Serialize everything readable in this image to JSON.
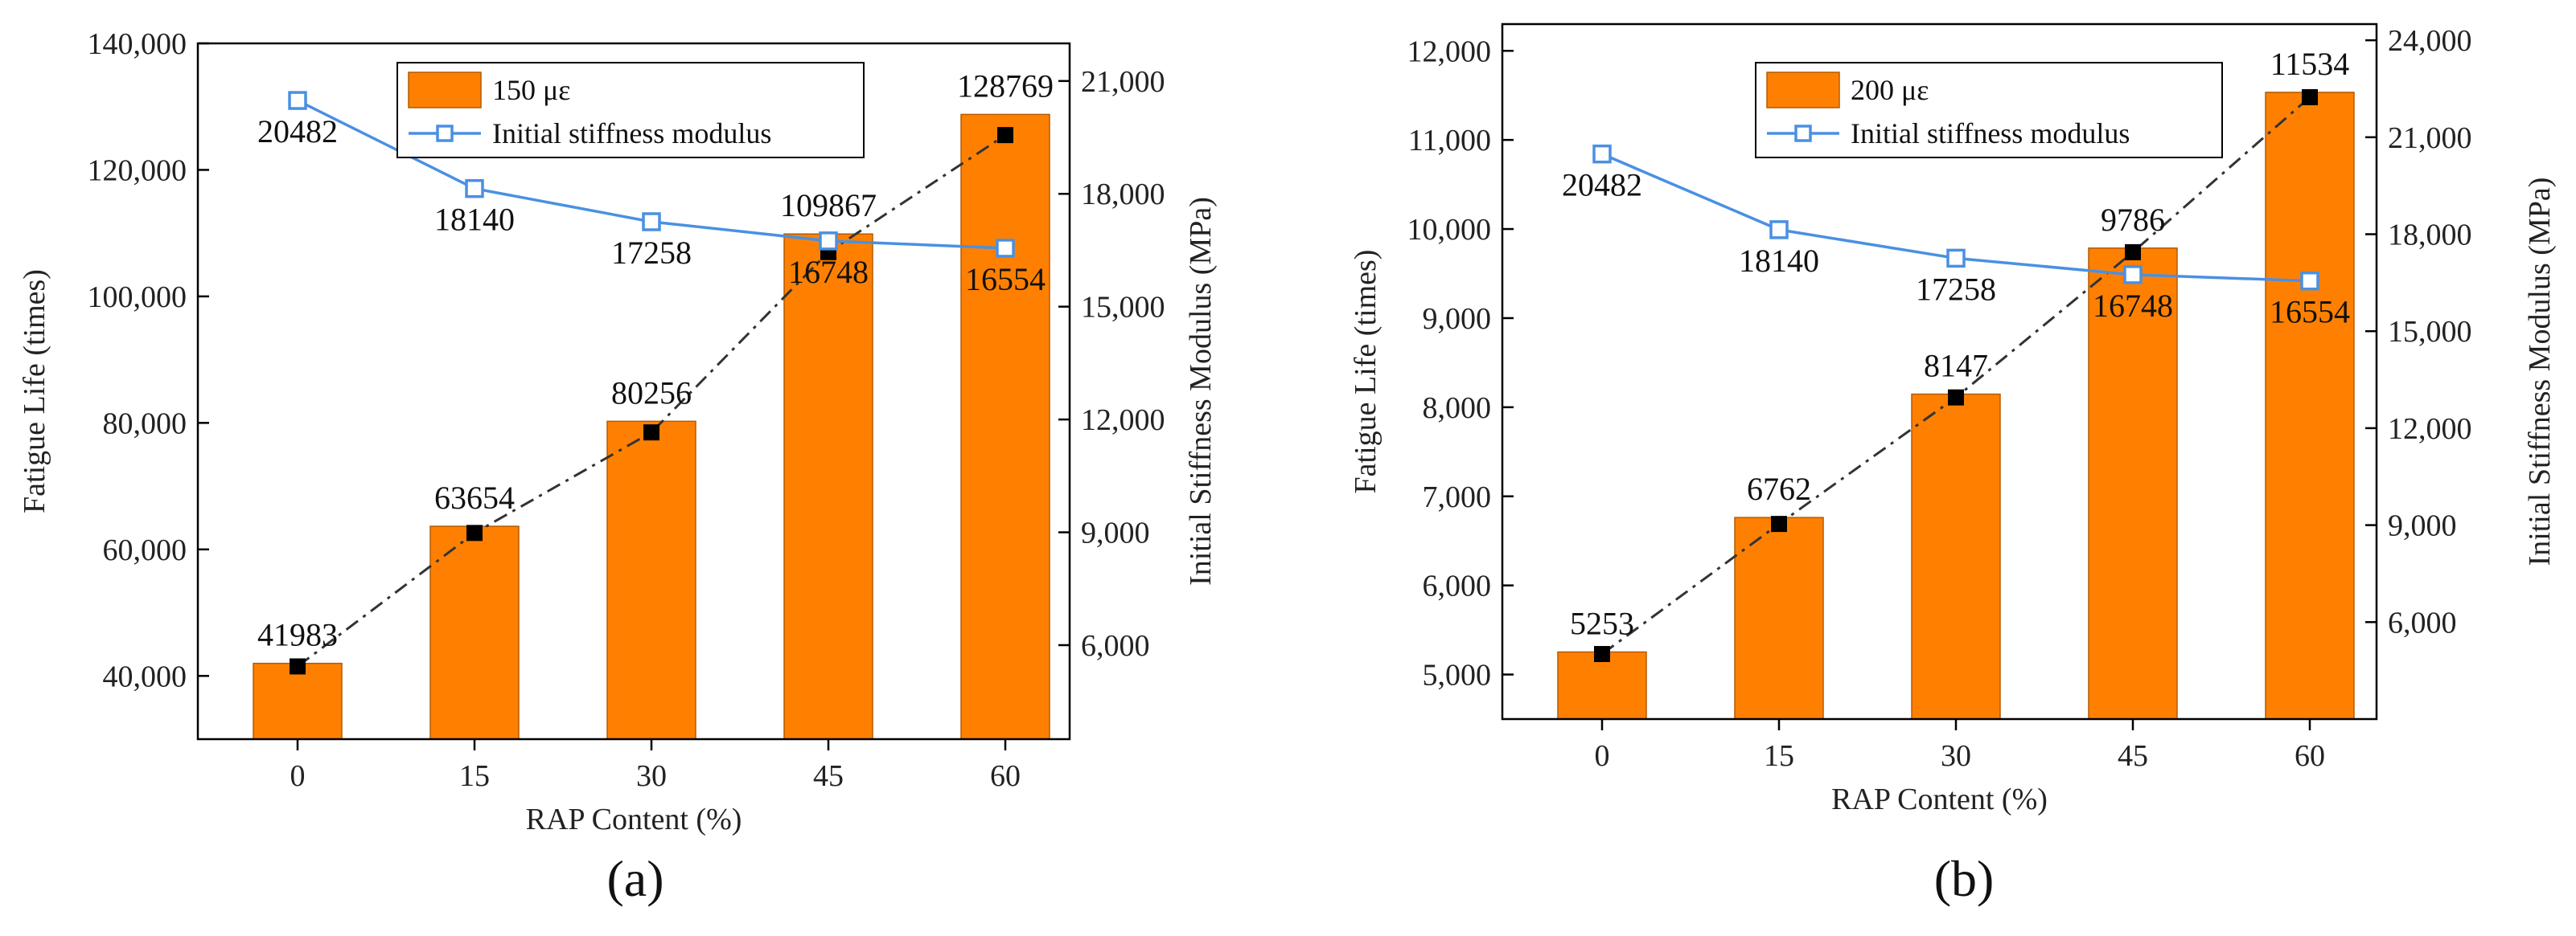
{
  "chart_data": [
    {
      "type": "bar",
      "panel": "(a)",
      "categories": [
        "0",
        "15",
        "30",
        "45",
        "60"
      ],
      "xlabel": "RAP Content (%)",
      "ylabel": "Fatigue Life (times)",
      "y2label": "Initial Stiffness Modulus (MPa)",
      "ylim": [
        30000,
        140000
      ],
      "yticks": [
        "40,000",
        "60,000",
        "80,000",
        "100,000",
        "120,000",
        "140,000"
      ],
      "ytick_values": [
        40000,
        60000,
        80000,
        100000,
        120000,
        140000
      ],
      "y2lim": [
        3500,
        22000
      ],
      "y2ticks": [
        "6,000",
        "9,000",
        "12,000",
        "15,000",
        "18,000",
        "21,000"
      ],
      "y2tick_values": [
        6000,
        9000,
        12000,
        15000,
        18000,
        21000
      ],
      "series": [
        {
          "name": "150 με",
          "kind": "bar",
          "axis": "left",
          "color": "#FF8000",
          "values": [
            41983,
            63654,
            80256,
            109867,
            128769
          ],
          "labels": [
            "41983",
            "63654",
            "80256",
            "109867",
            "128769"
          ]
        },
        {
          "name": "trend",
          "kind": "dashdot-line",
          "axis": "left",
          "color": "#000000",
          "values": [
            41500,
            62600,
            78500,
            107000,
            125500
          ]
        },
        {
          "name": "Initial stiffness modulus",
          "kind": "line-square",
          "axis": "right",
          "color": "#4A90E2",
          "values": [
            20482,
            18140,
            17258,
            16748,
            16554
          ],
          "labels": [
            "20482",
            "18140",
            "17258",
            "16748",
            "16554"
          ]
        }
      ],
      "legend": [
        "150 με",
        "Initial stiffness modulus"
      ],
      "legend_position": "top-center"
    },
    {
      "type": "bar",
      "panel": "(b)",
      "categories": [
        "0",
        "15",
        "30",
        "45",
        "60"
      ],
      "xlabel": "RAP Content (%)",
      "ylabel": "Fatigue Life (times)",
      "y2label": "Initial Stiffness Modulus (MPa)",
      "ylim": [
        4500,
        12300
      ],
      "yticks": [
        "5,000",
        "6,000",
        "7,000",
        "8,000",
        "9,000",
        "10,000",
        "11,000",
        "12,000"
      ],
      "ytick_values": [
        5000,
        6000,
        7000,
        8000,
        9000,
        10000,
        11000,
        12000
      ],
      "y2lim": [
        3000,
        24500
      ],
      "y2ticks": [
        "6,000",
        "9,000",
        "12,000",
        "15,000",
        "18,000",
        "21,000",
        "24,000"
      ],
      "y2tick_values": [
        6000,
        9000,
        12000,
        15000,
        18000,
        21000,
        24000
      ],
      "series": [
        {
          "name": "200 με",
          "kind": "bar",
          "axis": "left",
          "color": "#FF8000",
          "values": [
            5253,
            6762,
            8147,
            9786,
            11534
          ],
          "labels": [
            "5253",
            "6762",
            "8147",
            "9786",
            "11534"
          ]
        },
        {
          "name": "trend",
          "kind": "dashdot-line",
          "axis": "left",
          "color": "#000000",
          "values": [
            5230,
            6690,
            8110,
            9740,
            11480
          ]
        },
        {
          "name": "Initial stiffness modulus",
          "kind": "line-square",
          "axis": "right",
          "color": "#4A90E2",
          "values": [
            20482,
            18140,
            17258,
            16748,
            16554
          ],
          "labels": [
            "20482",
            "18140",
            "17258",
            "16748",
            "16554"
          ]
        }
      ],
      "legend": [
        "200 με",
        "Initial stiffness modulus"
      ],
      "legend_position": "top-center"
    }
  ]
}
